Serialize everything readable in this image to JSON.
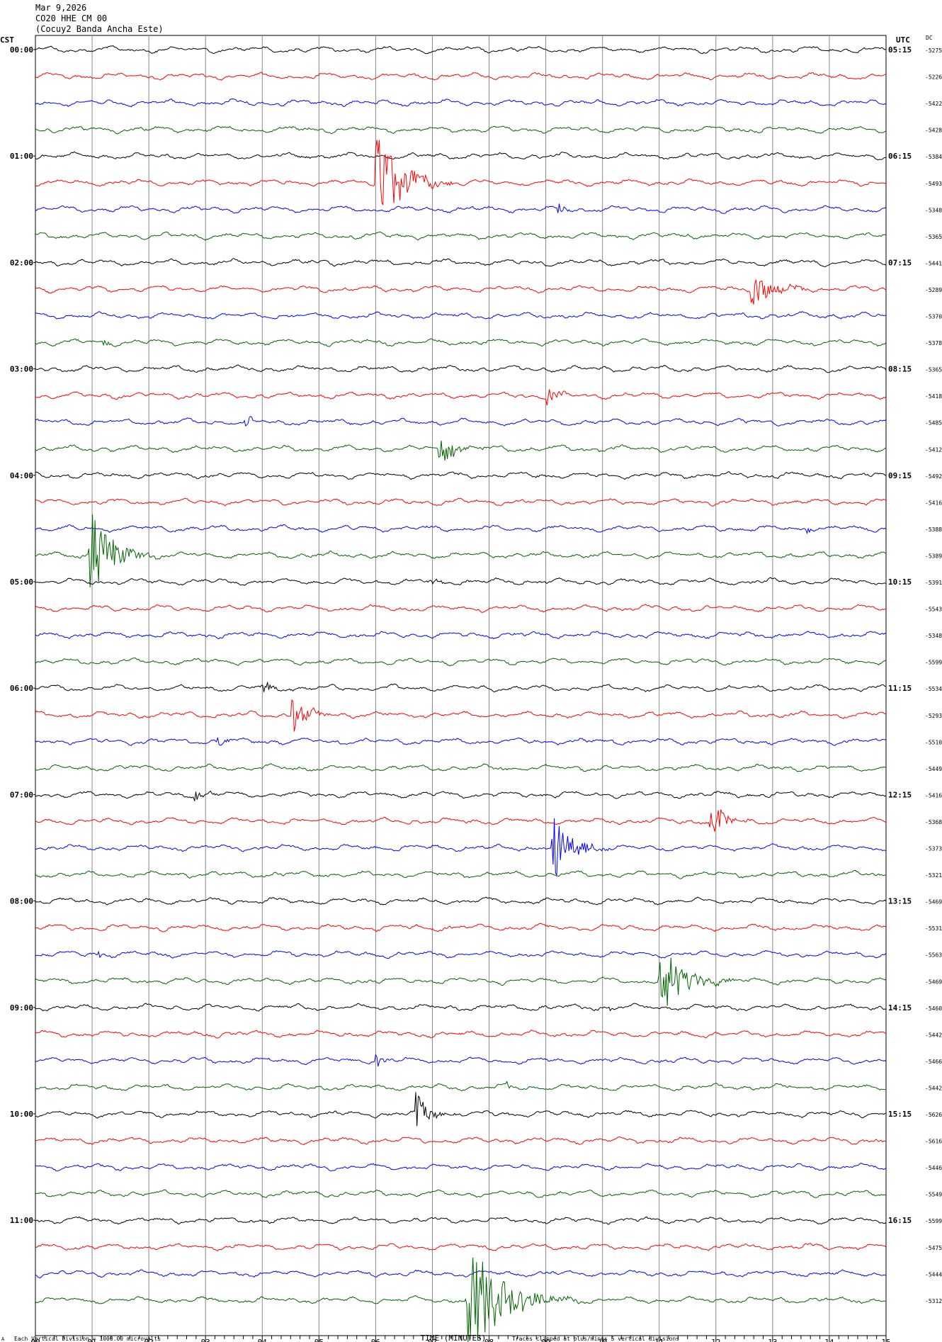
{
  "header": {
    "date": "Mar 9,2026",
    "station": "CO20 HHE CM 00",
    "site": "(Cocuy2 Banda Ancha Este)"
  },
  "axes": {
    "left_zone": "CST",
    "right_zone": "UTC",
    "dc_label": "DC",
    "xlabel": "TIME (MINUTES)",
    "footer_left": "Each Vertical Division = 1000.00 microvolts",
    "footer_right": "Traces clipped at plus/minus 5 vertical divisions",
    "footer_mark": "A"
  },
  "chart_data": {
    "type": "line",
    "title": "CO20 HHE CM 00",
    "xlabel": "TIME (MINUTES)",
    "x_ticks": [
      "00",
      "01",
      "02",
      "03",
      "04",
      "05",
      "06",
      "07",
      "08",
      "09",
      "10",
      "11",
      "12",
      "13",
      "14",
      "15"
    ],
    "xlim": [
      0,
      15
    ],
    "trace_minutes_per_line": 15,
    "trace_colors": [
      "#000000",
      "#ff0000",
      "#0000ff",
      "#006400"
    ],
    "left_time_labels": [
      "00:00",
      "01:00",
      "02:00",
      "03:00",
      "04:00",
      "05:00",
      "06:00",
      "07:00",
      "08:00",
      "09:00",
      "10:00",
      "11:00"
    ],
    "right_time_labels": [
      "05:15",
      "06:15",
      "07:15",
      "08:15",
      "09:15",
      "10:15",
      "11:15",
      "12:15",
      "13:15",
      "14:15",
      "15:15",
      "16:15"
    ],
    "dc_offsets": [
      "-5275",
      "-5226",
      "-5422",
      "-5428",
      "-5384",
      "-5493",
      "-5348",
      "-5365",
      "-5441",
      "-5289",
      "-5370",
      "-5378",
      "-5365",
      "-5418",
      "-5485",
      "-5412",
      "-5492",
      "-5416",
      "-5388",
      "-5389",
      "-5391",
      "-5543",
      "-5348",
      "-5599",
      "-5534",
      "-5293",
      "-5510",
      "-5449",
      "-5416",
      "-5368",
      "-5373",
      "-5321",
      "-5469",
      "-5531",
      "-5563",
      "-5469",
      "-5460",
      "-5442",
      "-5466",
      "-5442",
      "-5626",
      "-5616",
      "-5446",
      "-5549",
      "-5599",
      "-5475",
      "-5444",
      "-5312"
    ],
    "events": [
      {
        "trace": 5,
        "minute": 6.0,
        "amplitude": 4.5,
        "duration_min": 1.0
      },
      {
        "trace": 6,
        "minute": 9.2,
        "amplitude": 0.5,
        "duration_min": 0.3
      },
      {
        "trace": 7,
        "minute": 11.5,
        "amplitude": 0.3,
        "duration_min": 0.2
      },
      {
        "trace": 9,
        "minute": 12.6,
        "amplitude": 1.3,
        "duration_min": 1.0
      },
      {
        "trace": 11,
        "minute": 1.2,
        "amplitude": 0.4,
        "duration_min": 0.2
      },
      {
        "trace": 13,
        "minute": 9.0,
        "amplitude": 0.6,
        "duration_min": 0.6
      },
      {
        "trace": 14,
        "minute": 3.7,
        "amplitude": 0.7,
        "duration_min": 0.2
      },
      {
        "trace": 15,
        "minute": 7.1,
        "amplitude": 1.3,
        "duration_min": 0.7
      },
      {
        "trace": 18,
        "minute": 13.6,
        "amplitude": 0.4,
        "duration_min": 0.2
      },
      {
        "trace": 19,
        "minute": 0.95,
        "amplitude": 3.5,
        "duration_min": 1.0
      },
      {
        "trace": 20,
        "minute": 7.0,
        "amplitude": 0.3,
        "duration_min": 0.3
      },
      {
        "trace": 24,
        "minute": 4.0,
        "amplitude": 0.5,
        "duration_min": 0.5
      },
      {
        "trace": 25,
        "minute": 4.5,
        "amplitude": 1.5,
        "duration_min": 0.6
      },
      {
        "trace": 26,
        "minute": 3.2,
        "amplitude": 0.5,
        "duration_min": 0.3
      },
      {
        "trace": 28,
        "minute": 2.8,
        "amplitude": 0.4,
        "duration_min": 0.6
      },
      {
        "trace": 29,
        "minute": 11.9,
        "amplitude": 2.0,
        "duration_min": 0.5
      },
      {
        "trace": 30,
        "minute": 9.1,
        "amplitude": 3.0,
        "duration_min": 0.8
      },
      {
        "trace": 34,
        "minute": 1.1,
        "amplitude": 0.3,
        "duration_min": 0.2
      },
      {
        "trace": 35,
        "minute": 11.0,
        "amplitude": 3.0,
        "duration_min": 1.0
      },
      {
        "trace": 36,
        "minute": 10.1,
        "amplitude": 0.3,
        "duration_min": 0.2
      },
      {
        "trace": 38,
        "minute": 6.0,
        "amplitude": 0.6,
        "duration_min": 0.3
      },
      {
        "trace": 39,
        "minute": 8.3,
        "amplitude": 0.3,
        "duration_min": 0.3
      },
      {
        "trace": 40,
        "minute": 6.7,
        "amplitude": 1.4,
        "duration_min": 0.6
      },
      {
        "trace": 47,
        "minute": 7.6,
        "amplitude": 4.5,
        "duration_min": 1.5
      }
    ]
  }
}
